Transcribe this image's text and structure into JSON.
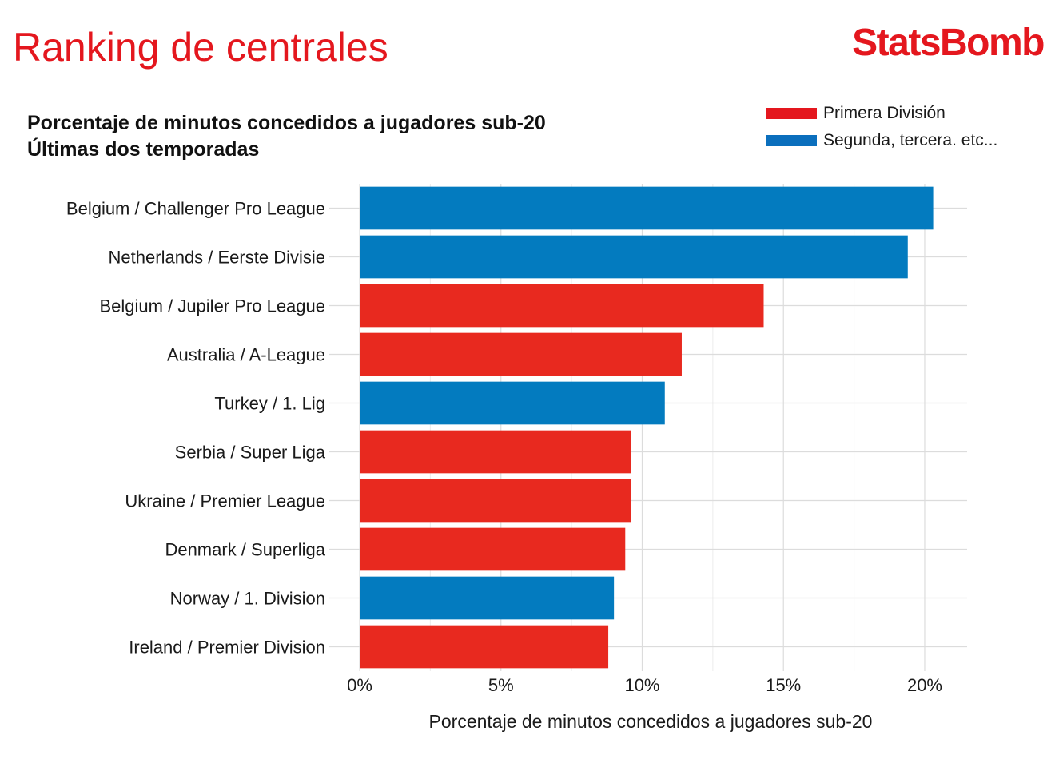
{
  "title": "Ranking de centrales",
  "brand": "StatsBomb",
  "subtitle_lines": [
    "Porcentaje de minutos concedidos a jugadores sub-20",
    "Últimas dos temporadas"
  ],
  "legend": [
    {
      "label": "Primera División",
      "color": "#e4171e"
    },
    {
      "label": "Segunda, tercera. etc...",
      "color": "#0b6fbd"
    }
  ],
  "chart_data": {
    "type": "bar",
    "orientation": "horizontal",
    "categories": [
      "Belgium / Challenger Pro League",
      "Netherlands / Eerste Divisie",
      "Belgium / Jupiler Pro League",
      "Australia / A-League",
      "Turkey / 1. Lig",
      "Serbia / Super Liga",
      "Ukraine / Premier League",
      "Denmark / Superliga",
      "Norway / 1. Division",
      "Ireland / Premier Division"
    ],
    "values": [
      20.3,
      19.4,
      14.3,
      11.4,
      10.8,
      9.6,
      9.6,
      9.4,
      9.0,
      8.8
    ],
    "groups": [
      "Segunda, tercera. etc...",
      "Segunda, tercera. etc...",
      "Primera División",
      "Primera División",
      "Segunda, tercera. etc...",
      "Primera División",
      "Primera División",
      "Primera División",
      "Segunda, tercera. etc...",
      "Primera División"
    ],
    "colors": {
      "Primera División": "#e8291f",
      "Segunda, tercera. etc...": "#037bbf"
    },
    "xlabel": "Porcentaje de minutos concedidos a jugadores sub-20",
    "ylabel": "",
    "xlim": [
      0,
      21.5
    ],
    "xticks": [
      0,
      5,
      10,
      15,
      20
    ],
    "xtick_labels": [
      "0%",
      "5%",
      "10%",
      "15%",
      "20%"
    ],
    "grid": true,
    "legend_position": "top-right"
  }
}
